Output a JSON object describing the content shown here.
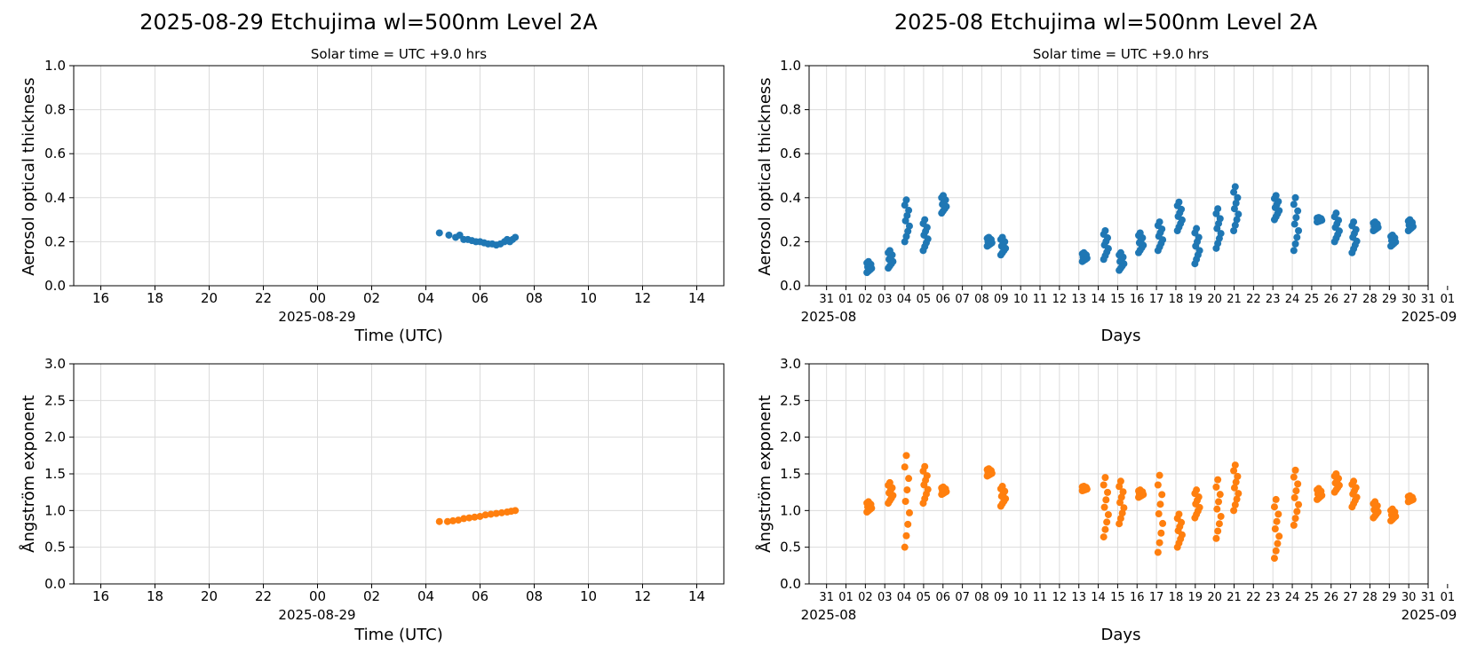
{
  "colors": {
    "aod": "#1f77b4",
    "angstrom": "#ff7f0e",
    "grid": "#dcdcdc"
  },
  "panels": [
    {
      "id": "daily",
      "title": "2025-08-29  Etchujima  wl=500nm  Level 2A",
      "subtitle": "Solar time = UTC +9.0 hrs",
      "xlabel": "Time (UTC)",
      "date_label": "2025-08-29",
      "x_ticks": [
        "16",
        "18",
        "20",
        "22",
        "00",
        "02",
        "04",
        "06",
        "08",
        "10",
        "12",
        "14"
      ],
      "x_range_hours": [
        -9,
        15
      ]
    },
    {
      "id": "monthly",
      "title": "2025-08  Etchujima  wl=500nm  Level 2A",
      "subtitle": "Solar time = UTC +9.0 hrs",
      "xlabel": "Days",
      "start_label": "2025-08",
      "end_label": "2025-09",
      "x_ticks": [
        "31",
        "01",
        "02",
        "03",
        "04",
        "05",
        "06",
        "07",
        "08",
        "09",
        "10",
        "11",
        "12",
        "13",
        "14",
        "15",
        "16",
        "17",
        "18",
        "19",
        "20",
        "21",
        "22",
        "23",
        "24",
        "25",
        "26",
        "27",
        "28",
        "29",
        "30",
        "31",
        "01"
      ],
      "x_range_days": [
        -0.9,
        31
      ]
    }
  ],
  "chart_data": [
    {
      "type": "scatter",
      "panel": "daily-aod",
      "x_unit": "hours UTC on 2025-08-29",
      "ylabel": "Aerosol optical thickness",
      "ylim": [
        0,
        1.0
      ],
      "y_ticks": [
        "0.0",
        "0.2",
        "0.4",
        "0.6",
        "0.8",
        "1.0"
      ],
      "grid": true,
      "points": [
        [
          4.5,
          0.24
        ],
        [
          4.85,
          0.23
        ],
        [
          5.1,
          0.22
        ],
        [
          5.25,
          0.23
        ],
        [
          5.4,
          0.21
        ],
        [
          5.55,
          0.21
        ],
        [
          5.7,
          0.205
        ],
        [
          5.85,
          0.2
        ],
        [
          6.0,
          0.2
        ],
        [
          6.15,
          0.195
        ],
        [
          6.3,
          0.19
        ],
        [
          6.45,
          0.19
        ],
        [
          6.6,
          0.185
        ],
        [
          6.75,
          0.19
        ],
        [
          6.9,
          0.2
        ],
        [
          7.0,
          0.21
        ],
        [
          7.1,
          0.2
        ],
        [
          7.2,
          0.21
        ],
        [
          7.3,
          0.22
        ]
      ]
    },
    {
      "type": "scatter",
      "panel": "daily-angstrom",
      "x_unit": "hours UTC on 2025-08-29",
      "ylabel": "Ångström exponent",
      "ylim": [
        0,
        3.0
      ],
      "y_ticks": [
        "0.0",
        "0.5",
        "1.0",
        "1.5",
        "2.0",
        "2.5",
        "3.0"
      ],
      "grid": true,
      "points": [
        [
          4.5,
          0.85
        ],
        [
          4.8,
          0.85
        ],
        [
          5.0,
          0.86
        ],
        [
          5.2,
          0.87
        ],
        [
          5.4,
          0.89
        ],
        [
          5.6,
          0.9
        ],
        [
          5.8,
          0.91
        ],
        [
          6.0,
          0.92
        ],
        [
          6.2,
          0.94
        ],
        [
          6.4,
          0.95
        ],
        [
          6.6,
          0.96
        ],
        [
          6.8,
          0.97
        ],
        [
          7.0,
          0.98
        ],
        [
          7.15,
          0.99
        ],
        [
          7.3,
          1.0
        ]
      ]
    },
    {
      "type": "scatter",
      "panel": "monthly-aod",
      "x_unit": "day of August 2025",
      "ylabel": "Aerosol optical thickness",
      "ylim": [
        0,
        1.0
      ],
      "y_ticks": [
        "0.0",
        "0.2",
        "0.4",
        "0.6",
        "0.8",
        "1.0"
      ],
      "grid": true,
      "clusters": [
        {
          "day": 2.2,
          "min": 0.06,
          "max": 0.11
        },
        {
          "day": 3.3,
          "min": 0.08,
          "max": 0.16
        },
        {
          "day": 4.15,
          "min": 0.2,
          "max": 0.39
        },
        {
          "day": 5.1,
          "min": 0.16,
          "max": 0.3
        },
        {
          "day": 6.05,
          "min": 0.33,
          "max": 0.41
        },
        {
          "day": 8.4,
          "min": 0.18,
          "max": 0.22
        },
        {
          "day": 9.1,
          "min": 0.14,
          "max": 0.22
        },
        {
          "day": 13.3,
          "min": 0.11,
          "max": 0.15
        },
        {
          "day": 14.4,
          "min": 0.12,
          "max": 0.25
        },
        {
          "day": 15.2,
          "min": 0.07,
          "max": 0.15
        },
        {
          "day": 16.2,
          "min": 0.15,
          "max": 0.24
        },
        {
          "day": 17.2,
          "min": 0.16,
          "max": 0.29
        },
        {
          "day": 18.2,
          "min": 0.25,
          "max": 0.38
        },
        {
          "day": 19.1,
          "min": 0.1,
          "max": 0.26
        },
        {
          "day": 20.2,
          "min": 0.17,
          "max": 0.35
        },
        {
          "day": 21.1,
          "min": 0.25,
          "max": 0.45
        },
        {
          "day": 23.2,
          "min": 0.3,
          "max": 0.41
        },
        {
          "day": 24.2,
          "min": 0.16,
          "max": 0.4
        },
        {
          "day": 25.4,
          "min": 0.29,
          "max": 0.31
        },
        {
          "day": 26.3,
          "min": 0.2,
          "max": 0.33
        },
        {
          "day": 27.2,
          "min": 0.15,
          "max": 0.29
        },
        {
          "day": 28.3,
          "min": 0.25,
          "max": 0.29
        },
        {
          "day": 29.2,
          "min": 0.18,
          "max": 0.23
        },
        {
          "day": 30.1,
          "min": 0.25,
          "max": 0.3
        }
      ]
    },
    {
      "type": "scatter",
      "panel": "monthly-angstrom",
      "x_unit": "day of August 2025",
      "ylabel": "Ångström exponent",
      "ylim": [
        0,
        3.0
      ],
      "y_ticks": [
        "0.0",
        "0.5",
        "1.0",
        "1.5",
        "2.0",
        "2.5",
        "3.0"
      ],
      "grid": true,
      "clusters": [
        {
          "day": 2.2,
          "min": 0.98,
          "max": 1.12
        },
        {
          "day": 3.3,
          "min": 1.1,
          "max": 1.38
        },
        {
          "day": 4.15,
          "min": 0.5,
          "max": 1.75
        },
        {
          "day": 5.1,
          "min": 1.1,
          "max": 1.6
        },
        {
          "day": 6.05,
          "min": 1.22,
          "max": 1.32
        },
        {
          "day": 8.4,
          "min": 1.47,
          "max": 1.57
        },
        {
          "day": 9.1,
          "min": 1.06,
          "max": 1.33
        },
        {
          "day": 13.3,
          "min": 1.27,
          "max": 1.33
        },
        {
          "day": 14.4,
          "min": 0.64,
          "max": 1.45
        },
        {
          "day": 15.2,
          "min": 0.82,
          "max": 1.4
        },
        {
          "day": 16.2,
          "min": 1.18,
          "max": 1.28
        },
        {
          "day": 17.2,
          "min": 0.43,
          "max": 1.48
        },
        {
          "day": 18.2,
          "min": 0.5,
          "max": 0.95
        },
        {
          "day": 19.1,
          "min": 0.9,
          "max": 1.28
        },
        {
          "day": 20.2,
          "min": 0.62,
          "max": 1.42
        },
        {
          "day": 21.1,
          "min": 1.0,
          "max": 1.62
        },
        {
          "day": 23.2,
          "min": 0.35,
          "max": 1.15
        },
        {
          "day": 24.2,
          "min": 0.8,
          "max": 1.55
        },
        {
          "day": 25.4,
          "min": 1.15,
          "max": 1.3
        },
        {
          "day": 26.3,
          "min": 1.25,
          "max": 1.5
        },
        {
          "day": 27.2,
          "min": 1.05,
          "max": 1.4
        },
        {
          "day": 28.3,
          "min": 0.9,
          "max": 1.12
        },
        {
          "day": 29.2,
          "min": 0.86,
          "max": 1.02
        },
        {
          "day": 30.1,
          "min": 1.12,
          "max": 1.2
        }
      ]
    }
  ]
}
